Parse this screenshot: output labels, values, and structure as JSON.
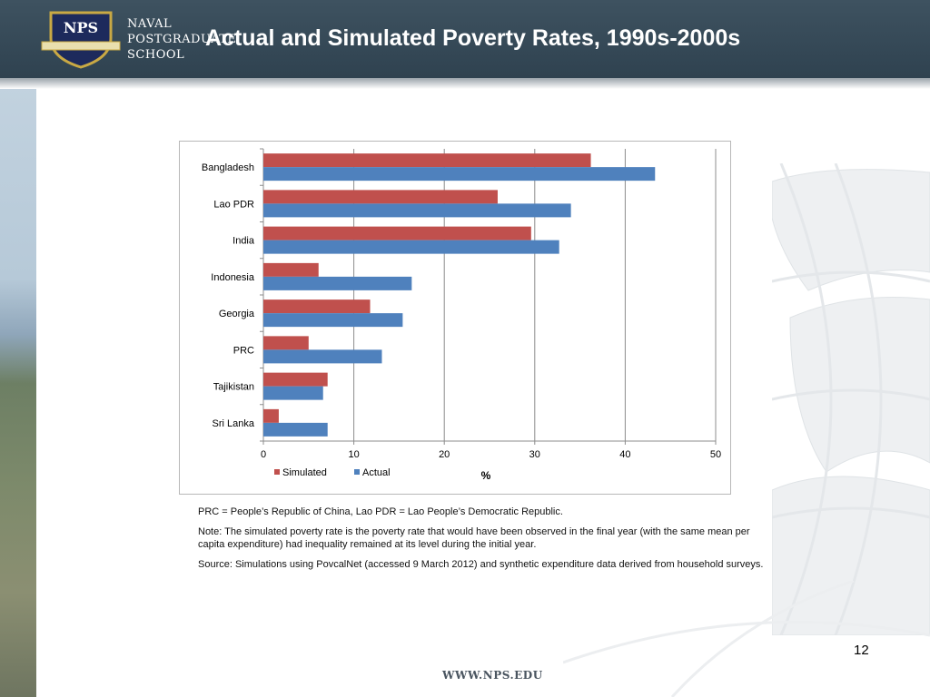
{
  "header": {
    "logo_line1": "NAVAL",
    "logo_line2": "POSTGRADUATE",
    "logo_line3": "SCHOOL",
    "logo_emblem_text": "NPS",
    "title": "Actual and Simulated Poverty Rates, 1990s-2000s"
  },
  "chart_data": {
    "type": "bar",
    "orientation": "horizontal",
    "categories": [
      "Bangladesh",
      "Lao PDR",
      "India",
      "Indonesia",
      "Georgia",
      "PRC",
      "Tajikistan",
      "Sri Lanka"
    ],
    "series": [
      {
        "name": "Simulated",
        "color": "#c0504d",
        "values": [
          36.2,
          25.9,
          29.6,
          6.1,
          11.8,
          5.0,
          7.1,
          1.7
        ]
      },
      {
        "name": "Actual",
        "color": "#4f81bd",
        "values": [
          43.3,
          34.0,
          32.7,
          16.4,
          15.4,
          13.1,
          6.6,
          7.1
        ]
      }
    ],
    "xlabel": "%",
    "xlim": [
      0,
      50
    ],
    "xticks": [
      0,
      10,
      20,
      30,
      40,
      50
    ],
    "grid": true,
    "legend_position": "bottom-left"
  },
  "notes": {
    "abbrev": "PRC = People’s Republic of China, Lao PDR = Lao People’s Democratic Republic.",
    "note": "Note:  The simulated poverty rate is the poverty rate that would have been observed in the final year (with the same mean per capita expenditure) had inequality remained at its level during the initial year.",
    "source": "Source: Simulations using PovcalNet (accessed 9 March 2012) and synthetic expenditure data derived from household surveys."
  },
  "footer": {
    "page_number": "12",
    "url": "WWW.NPS.EDU"
  }
}
